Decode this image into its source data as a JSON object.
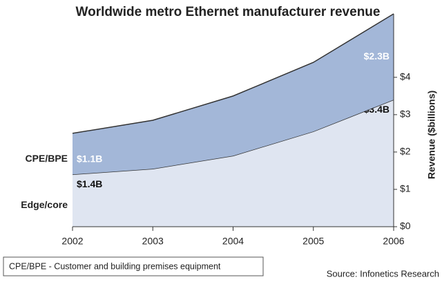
{
  "chart_data": {
    "type": "stacked_area",
    "title": "Worldwide metro Ethernet manufacturer revenue",
    "y_label": "Revenue ($billions)",
    "categories": [
      "2002",
      "2003",
      "2004",
      "2005",
      "2006"
    ],
    "series": [
      {
        "name": "Edge/core",
        "color": "#dfe5f1",
        "values": [
          1.4,
          1.55,
          1.9,
          2.55,
          3.4
        ],
        "value_labels": [
          "$1.4B",
          null,
          null,
          null,
          "$3.4B"
        ],
        "label_color": "#111111"
      },
      {
        "name": "CPE/BPE",
        "color": "#a3b7d8",
        "values": [
          1.1,
          1.3,
          1.6,
          1.85,
          2.3
        ],
        "value_labels": [
          "$1.1B",
          null,
          null,
          null,
          "$2.3B"
        ],
        "label_color": "#ffffff"
      }
    ],
    "ylim": [
      0,
      5.7
    ],
    "yticks": [
      {
        "value": 0,
        "label": "$0"
      },
      {
        "value": 1,
        "label": "$1"
      },
      {
        "value": 2,
        "label": "$2"
      },
      {
        "value": 3,
        "label": "$3"
      },
      {
        "value": 4,
        "label": "$4"
      }
    ],
    "footnote": "CPE/BPE - Customer and building premises equipment",
    "source": "Source: Infonetics Research"
  }
}
